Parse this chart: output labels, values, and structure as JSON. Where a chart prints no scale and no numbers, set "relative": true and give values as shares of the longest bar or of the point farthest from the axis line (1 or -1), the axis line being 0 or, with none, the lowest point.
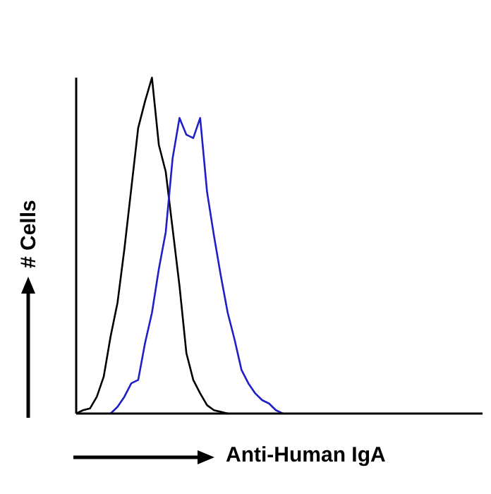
{
  "chart_data": {
    "type": "line",
    "relative": true,
    "xlabel": "Anti-Human IgA",
    "ylabel": "# Cells",
    "marker": "none",
    "line_style": "solid",
    "categories": [
      null,
      null,
      null,
      null,
      null,
      null,
      null,
      null,
      null,
      null,
      null,
      null,
      null,
      null,
      null,
      null,
      null,
      null,
      null,
      null,
      null,
      null,
      null,
      null,
      null,
      null,
      null,
      null,
      null,
      null,
      null,
      null,
      null,
      null,
      null,
      null,
      null,
      null,
      null,
      null,
      null,
      null,
      null,
      null,
      null,
      null,
      null,
      null,
      null,
      null,
      null,
      null,
      null,
      null,
      null,
      null,
      null,
      null,
      null,
      null
    ],
    "series": [
      {
        "color": "#000000",
        "values": [
          0,
          0.01,
          0.015,
          0.05,
          0.11,
          0.23,
          0.33,
          0.49,
          0.67,
          0.85,
          0.93,
          1,
          0.8,
          0.72,
          0.55,
          0.38,
          0.18,
          0.1,
          0.06,
          0.025,
          0.01,
          0.005,
          0,
          null,
          null,
          null,
          null,
          null,
          null,
          null,
          null,
          null,
          null,
          null,
          null,
          null,
          null,
          null,
          null,
          null,
          null,
          null,
          null,
          null,
          null,
          null,
          null,
          null,
          null,
          null,
          null,
          null,
          null,
          null,
          null,
          null,
          null,
          null,
          null,
          null
        ]
      },
      {
        "color": "#1f1fc8",
        "values": [
          null,
          null,
          null,
          null,
          null,
          0,
          0.02,
          0.05,
          0.09,
          0.1,
          0.21,
          0.3,
          0.43,
          0.54,
          0.76,
          0.88,
          0.83,
          0.82,
          0.88,
          0.66,
          0.53,
          0.41,
          0.3,
          0.22,
          0.13,
          0.09,
          0.06,
          0.04,
          0.03,
          0.01,
          0,
          null,
          null,
          null,
          null,
          null,
          null,
          null,
          null,
          null,
          null,
          null,
          null,
          null,
          null,
          null,
          null,
          null,
          null,
          null,
          null,
          null,
          null,
          null,
          null,
          null,
          null,
          null,
          null,
          null
        ]
      }
    ]
  }
}
